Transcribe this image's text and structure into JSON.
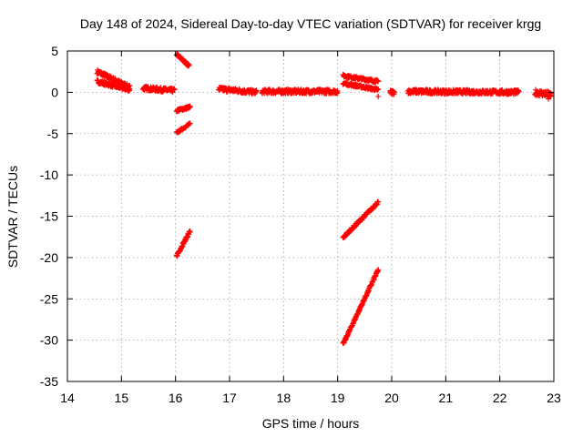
{
  "chart_data": {
    "type": "scatter",
    "title": "Day 148 of 2024, Sidereal Day-to-day VTEC variation (SDTVAR) for receiver krgg",
    "xlabel": "GPS time / hours",
    "ylabel": "SDTVAR / TECUs",
    "xlim": [
      14,
      23
    ],
    "ylim": [
      -35,
      5
    ],
    "x_ticks": [
      14,
      15,
      16,
      17,
      18,
      19,
      20,
      21,
      22,
      23
    ],
    "y_ticks": [
      -35,
      -30,
      -25,
      -20,
      -15,
      -10,
      -5,
      0,
      5
    ],
    "grid": true,
    "marker": "plus",
    "colors": {
      "series": "#ff0000"
    },
    "segments": [
      {
        "x_start": 14.55,
        "x_end": 15.15,
        "y_start": 2.5,
        "y_end": 0.6,
        "spread": 0.5
      },
      {
        "x_start": 14.55,
        "x_end": 15.15,
        "y_start": 1.3,
        "y_end": 0.3,
        "spread": 0.4
      },
      {
        "x_start": 15.4,
        "x_end": 15.98,
        "y_start": 0.5,
        "y_end": 0.2,
        "spread": 0.5
      },
      {
        "x_start": 16.02,
        "x_end": 16.25,
        "y_start": 4.6,
        "y_end": 3.2,
        "spread": 0.3
      },
      {
        "x_start": 16.02,
        "x_end": 16.27,
        "y_start": -2.2,
        "y_end": -1.8,
        "spread": 0.3
      },
      {
        "x_start": 16.02,
        "x_end": 16.27,
        "y_start": -4.9,
        "y_end": -3.8,
        "spread": 0.2
      },
      {
        "x_start": 16.02,
        "x_end": 16.27,
        "y_start": -19.8,
        "y_end": -16.8,
        "spread": 0.3
      },
      {
        "x_start": 16.8,
        "x_end": 17.5,
        "y_start": 0.4,
        "y_end": 0.0,
        "spread": 0.5
      },
      {
        "x_start": 17.6,
        "x_end": 19.0,
        "y_start": 0.1,
        "y_end": 0.1,
        "spread": 0.5
      },
      {
        "x_start": 19.1,
        "x_end": 19.75,
        "y_start": 2.0,
        "y_end": 1.3,
        "spread": 0.3
      },
      {
        "x_start": 19.1,
        "x_end": 19.75,
        "y_start": 1.1,
        "y_end": 0.3,
        "spread": 0.3
      },
      {
        "x_start": 19.1,
        "x_end": 19.75,
        "y_start": -17.6,
        "y_end": -13.3,
        "spread": 0.3
      },
      {
        "x_start": 19.1,
        "x_end": 19.75,
        "y_start": -30.5,
        "y_end": -21.5,
        "spread": 0.3
      },
      {
        "x_start": 19.97,
        "x_end": 20.05,
        "y_start": 0.0,
        "y_end": 0.0,
        "spread": 0.5
      },
      {
        "x_start": 20.3,
        "x_end": 22.35,
        "y_start": 0.1,
        "y_end": 0.0,
        "spread": 0.5
      },
      {
        "x_start": 22.65,
        "x_end": 22.95,
        "y_start": 0.0,
        "y_end": -0.3,
        "spread": 0.7
      }
    ],
    "points": [
      {
        "x": 19.75,
        "y": -0.5
      },
      {
        "x": 22.9,
        "y": -0.8
      }
    ]
  }
}
